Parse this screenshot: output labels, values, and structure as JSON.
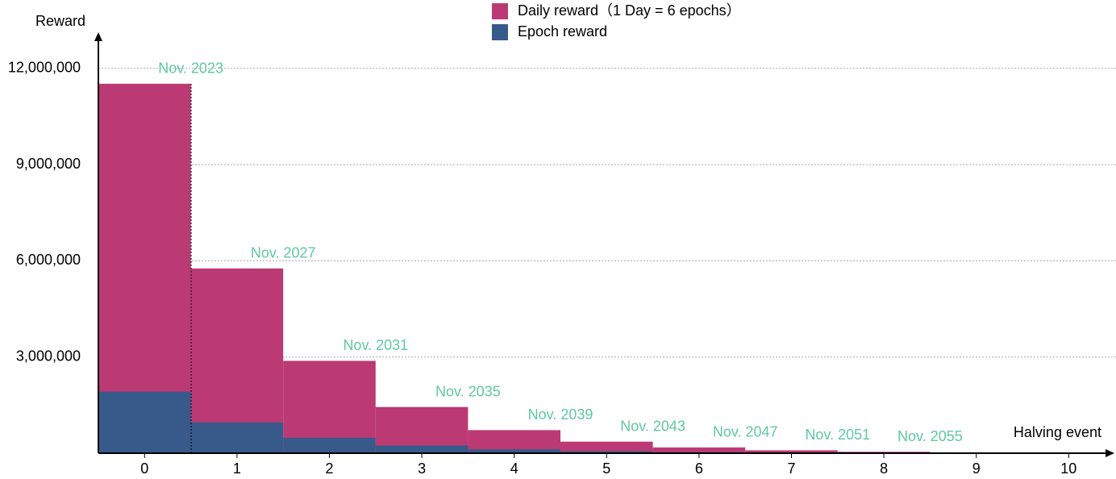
{
  "chart_data": {
    "type": "bar",
    "y_label": "Reward",
    "x_label": "Halving event",
    "categories": [
      "0",
      "1",
      "2",
      "3",
      "4",
      "5",
      "6",
      "7",
      "8",
      "9",
      "10"
    ],
    "series": [
      {
        "name": "Daily reward（1 Day = 6 epochs）",
        "color": "#bb3a74",
        "values": [
          11520000,
          5760000,
          2880000,
          1440000,
          720000,
          360000,
          180000,
          90000,
          45000,
          null,
          null
        ]
      },
      {
        "name": "Epoch reward",
        "color": "#385a8a",
        "values": [
          1920000,
          960000,
          480000,
          240000,
          120000,
          60000,
          30000,
          15000,
          7500,
          null,
          null
        ]
      }
    ],
    "annotations": [
      "Nov. 2023",
      "Nov. 2027",
      "Nov. 2031",
      "Nov. 2035",
      "Nov. 2039",
      "Nov. 2043",
      "Nov. 2047",
      "Nov. 2051",
      "Nov. 2055"
    ],
    "annotation_color": "#5fc9a0",
    "ylim": [
      0,
      13000000
    ],
    "yticks": [
      {
        "value": 3000000,
        "label": "3,000,000"
      },
      {
        "value": 6000000,
        "label": "6,000,000"
      },
      {
        "value": 9000000,
        "label": "9,000,000"
      },
      {
        "value": 12000000,
        "label": "12,000,000"
      }
    ],
    "grid": true
  }
}
